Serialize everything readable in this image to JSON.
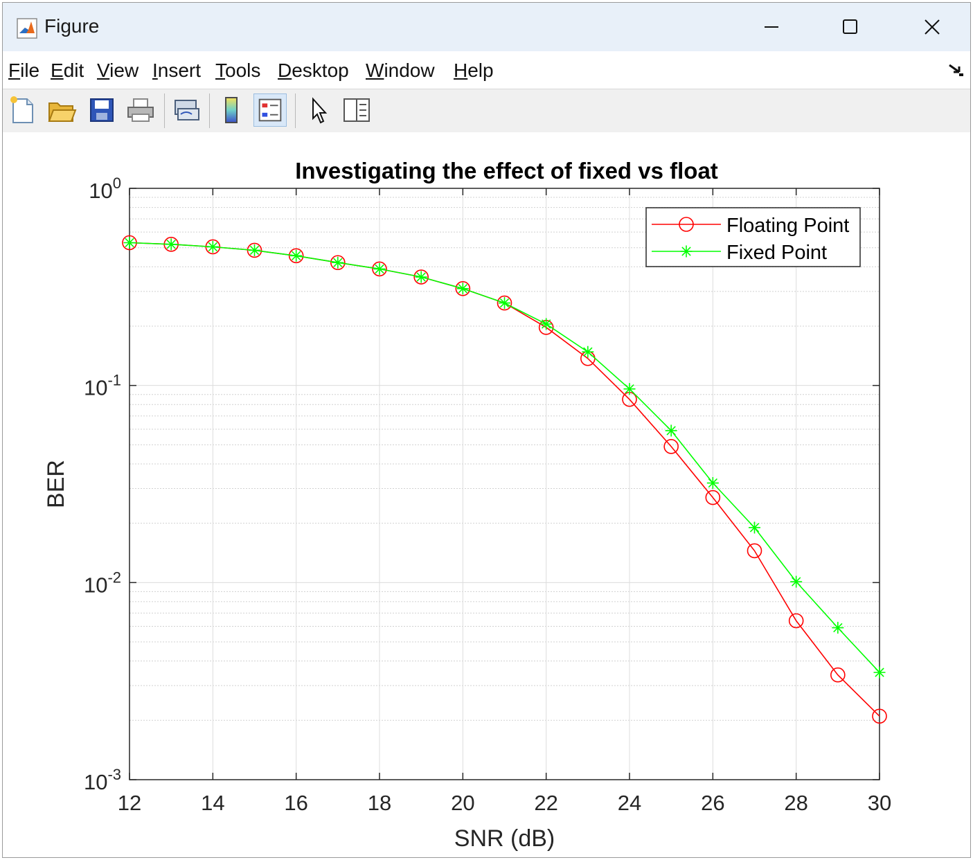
{
  "window": {
    "title": "Figure"
  },
  "menu": {
    "items": [
      {
        "key": "F",
        "rest": "ile"
      },
      {
        "key": "E",
        "rest": "dit"
      },
      {
        "key": "V",
        "rest": "iew"
      },
      {
        "key": "I",
        "rest": "nsert"
      },
      {
        "key": "T",
        "rest": "ools"
      },
      {
        "key": "D",
        "rest": "esktop"
      },
      {
        "key": "W",
        "rest": "indow"
      },
      {
        "key": "H",
        "rest": "elp"
      }
    ]
  },
  "toolbar": {
    "icons": [
      "new-figure-icon",
      "open-file-icon",
      "save-icon",
      "print-icon",
      "link-plot-icon",
      "colorbar-icon",
      "legend-icon",
      "edit-plot-icon",
      "property-inspector-icon"
    ]
  },
  "chart_data": {
    "type": "line",
    "title": "Investigating the effect of fixed vs float",
    "xlabel": "SNR (dB)",
    "ylabel": "BER",
    "xlim": [
      12,
      30
    ],
    "ylim": [
      0.001,
      1
    ],
    "yscale": "log",
    "grid": true,
    "minor_grid": true,
    "legend_position": "top-right",
    "x_ticks": [
      "12",
      "14",
      "16",
      "18",
      "20",
      "22",
      "24",
      "26",
      "28",
      "30"
    ],
    "y_ticks": [
      {
        "base": "10",
        "exp": "0",
        "value": 1
      },
      {
        "base": "10",
        "exp": "-1",
        "value": 0.1
      },
      {
        "base": "10",
        "exp": "-2",
        "value": 0.01
      },
      {
        "base": "10",
        "exp": "-3",
        "value": 0.001
      }
    ],
    "x": [
      12,
      13,
      14,
      15,
      16,
      17,
      18,
      19,
      20,
      21,
      22,
      23,
      24,
      25,
      26,
      27,
      28,
      29,
      30
    ],
    "series": [
      {
        "name": "Floating Point",
        "color": "#ff0000",
        "marker": "circle",
        "values": [
          0.53,
          0.52,
          0.505,
          0.485,
          0.455,
          0.42,
          0.39,
          0.355,
          0.31,
          0.262,
          0.197,
          0.137,
          0.085,
          0.049,
          0.027,
          0.0145,
          0.0064,
          0.0034,
          0.0021
        ]
      },
      {
        "name": "Fixed Point",
        "color": "#00ff00",
        "marker": "asterisk",
        "values": [
          0.53,
          0.52,
          0.505,
          0.485,
          0.455,
          0.42,
          0.39,
          0.355,
          0.31,
          0.262,
          0.205,
          0.148,
          0.096,
          0.059,
          0.032,
          0.019,
          0.0101,
          0.0059,
          0.0035
        ]
      }
    ]
  }
}
